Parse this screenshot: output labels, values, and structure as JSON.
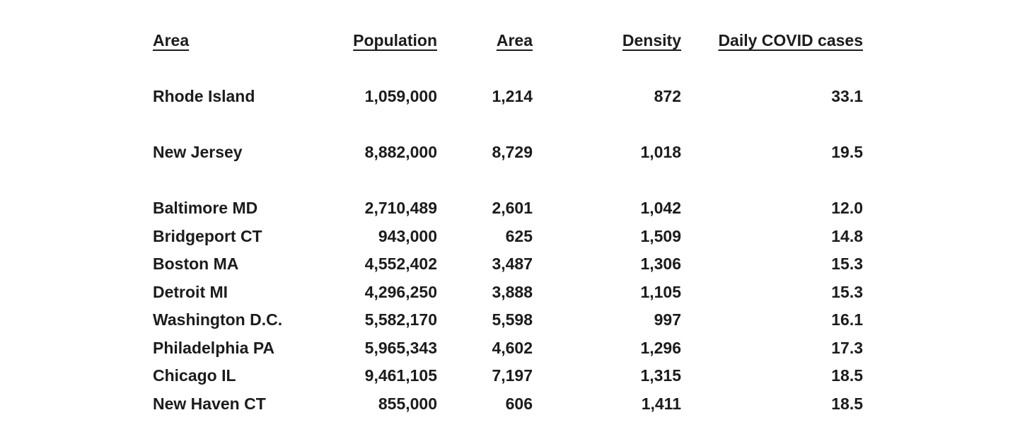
{
  "page": {
    "background_color": "#ffffff",
    "text_color": "#1c1c1e"
  },
  "table": {
    "headers": [
      {
        "label": "Area",
        "align": "left"
      },
      {
        "label": "Population",
        "align": "right"
      },
      {
        "label": "Area",
        "align": "right"
      },
      {
        "label": "Density",
        "align": "right"
      },
      {
        "label": "Daily COVID cases",
        "align": "right"
      }
    ],
    "groups": [
      {
        "rows": [
          {
            "area": "Rhode Island",
            "population": "1,059,000",
            "area_value": "1,214",
            "density": "872",
            "daily_covid_cases": "33.1"
          }
        ]
      },
      {
        "rows": [
          {
            "area": "New Jersey",
            "population": "8,882,000",
            "area_value": "8,729",
            "density": "1,018",
            "daily_covid_cases": "19.5"
          }
        ]
      },
      {
        "rows": [
          {
            "area": "Baltimore MD",
            "population": "2,710,489",
            "area_value": "2,601",
            "density": "1,042",
            "daily_covid_cases": "12.0"
          },
          {
            "area": "Bridgeport CT",
            "population": "943,000",
            "area_value": "625",
            "density": "1,509",
            "daily_covid_cases": "14.8"
          },
          {
            "area": "Boston MA",
            "population": "4,552,402",
            "area_value": "3,487",
            "density": "1,306",
            "daily_covid_cases": "15.3"
          },
          {
            "area": "Detroit MI",
            "population": "4,296,250",
            "area_value": "3,888",
            "density": "1,105",
            "daily_covid_cases": "15.3"
          },
          {
            "area": "Washington D.C.",
            "population": "5,582,170",
            "area_value": "5,598",
            "density": "997",
            "daily_covid_cases": "16.1"
          },
          {
            "area": "Philadelphia PA",
            "population": "5,965,343",
            "area_value": "4,602",
            "density": "1,296",
            "daily_covid_cases": "17.3"
          },
          {
            "area": "Chicago IL",
            "population": "9,461,105",
            "area_value": "7,197",
            "density": "1,315",
            "daily_covid_cases": "18.5"
          },
          {
            "area": "New Haven CT",
            "population": "855,000",
            "area_value": "606",
            "density": "1,411",
            "daily_covid_cases": "18.5"
          }
        ]
      }
    ]
  }
}
